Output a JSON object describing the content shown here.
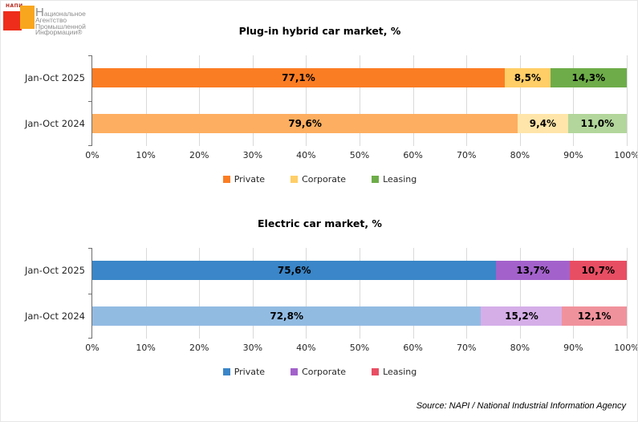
{
  "logo": {
    "mark_text": "НАПИ",
    "lines": [
      "Национальное",
      "Агентство",
      "Промышленной",
      "Информации®"
    ],
    "colors": {
      "red": "#EE2D1A",
      "orange": "#F8A61D"
    }
  },
  "source_note": "Source: NAPI / National Industrial Information Agency",
  "chart_data": [
    {
      "type": "bar",
      "orientation": "horizontal",
      "stacked": true,
      "title": "Plug-in hybrid car market, %",
      "categories": [
        "Jan-Oct 2025",
        "Jan-Oct 2024"
      ],
      "series": [
        {
          "name": "Private",
          "values": [
            77.1,
            79.6
          ]
        },
        {
          "name": "Corporate",
          "values": [
            8.5,
            9.4
          ]
        },
        {
          "name": "Leasing",
          "values": [
            14.3,
            11.0
          ]
        }
      ],
      "data_labels": [
        [
          "77,1%",
          "8,5%",
          "14,3%"
        ],
        [
          "79,6%",
          "9,4%",
          "11,0%"
        ]
      ],
      "row_colors": [
        [
          "#FB7D23",
          "#FFCE67",
          "#6EAC49"
        ],
        [
          "#FDAE60",
          "#FFE5A9",
          "#B2D69B"
        ]
      ],
      "legend_colors": [
        "#FB7D23",
        "#FFCE67",
        "#6EAC49"
      ],
      "xlim": [
        0,
        100
      ],
      "tick_labels": [
        "0%",
        "10%",
        "20%",
        "30%",
        "40%",
        "50%",
        "60%",
        "70%",
        "80%",
        "90%",
        "100%"
      ],
      "grid": "vertical",
      "legend_position": "bottom"
    },
    {
      "type": "bar",
      "orientation": "horizontal",
      "stacked": true,
      "title": "Electric car market, %",
      "categories": [
        "Jan-Oct 2025",
        "Jan-Oct 2024"
      ],
      "series": [
        {
          "name": "Private",
          "values": [
            75.6,
            72.8
          ]
        },
        {
          "name": "Corporate",
          "values": [
            13.7,
            15.2
          ]
        },
        {
          "name": "Leasing",
          "values": [
            10.7,
            12.1
          ]
        }
      ],
      "data_labels": [
        [
          "75,6%",
          "13,7%",
          "10,7%"
        ],
        [
          "72,8%",
          "15,2%",
          "12,1%"
        ]
      ],
      "row_colors": [
        [
          "#3A86C8",
          "#A362CB",
          "#E84E63"
        ],
        [
          "#92BBE2",
          "#D5AEE8",
          "#F0929C"
        ]
      ],
      "legend_colors": [
        "#3A86C8",
        "#A362CB",
        "#E84E63"
      ],
      "xlim": [
        0,
        100
      ],
      "tick_labels": [
        "0%",
        "10%",
        "20%",
        "30%",
        "40%",
        "50%",
        "60%",
        "70%",
        "80%",
        "90%",
        "100%"
      ],
      "grid": "vertical",
      "legend_position": "bottom"
    }
  ]
}
